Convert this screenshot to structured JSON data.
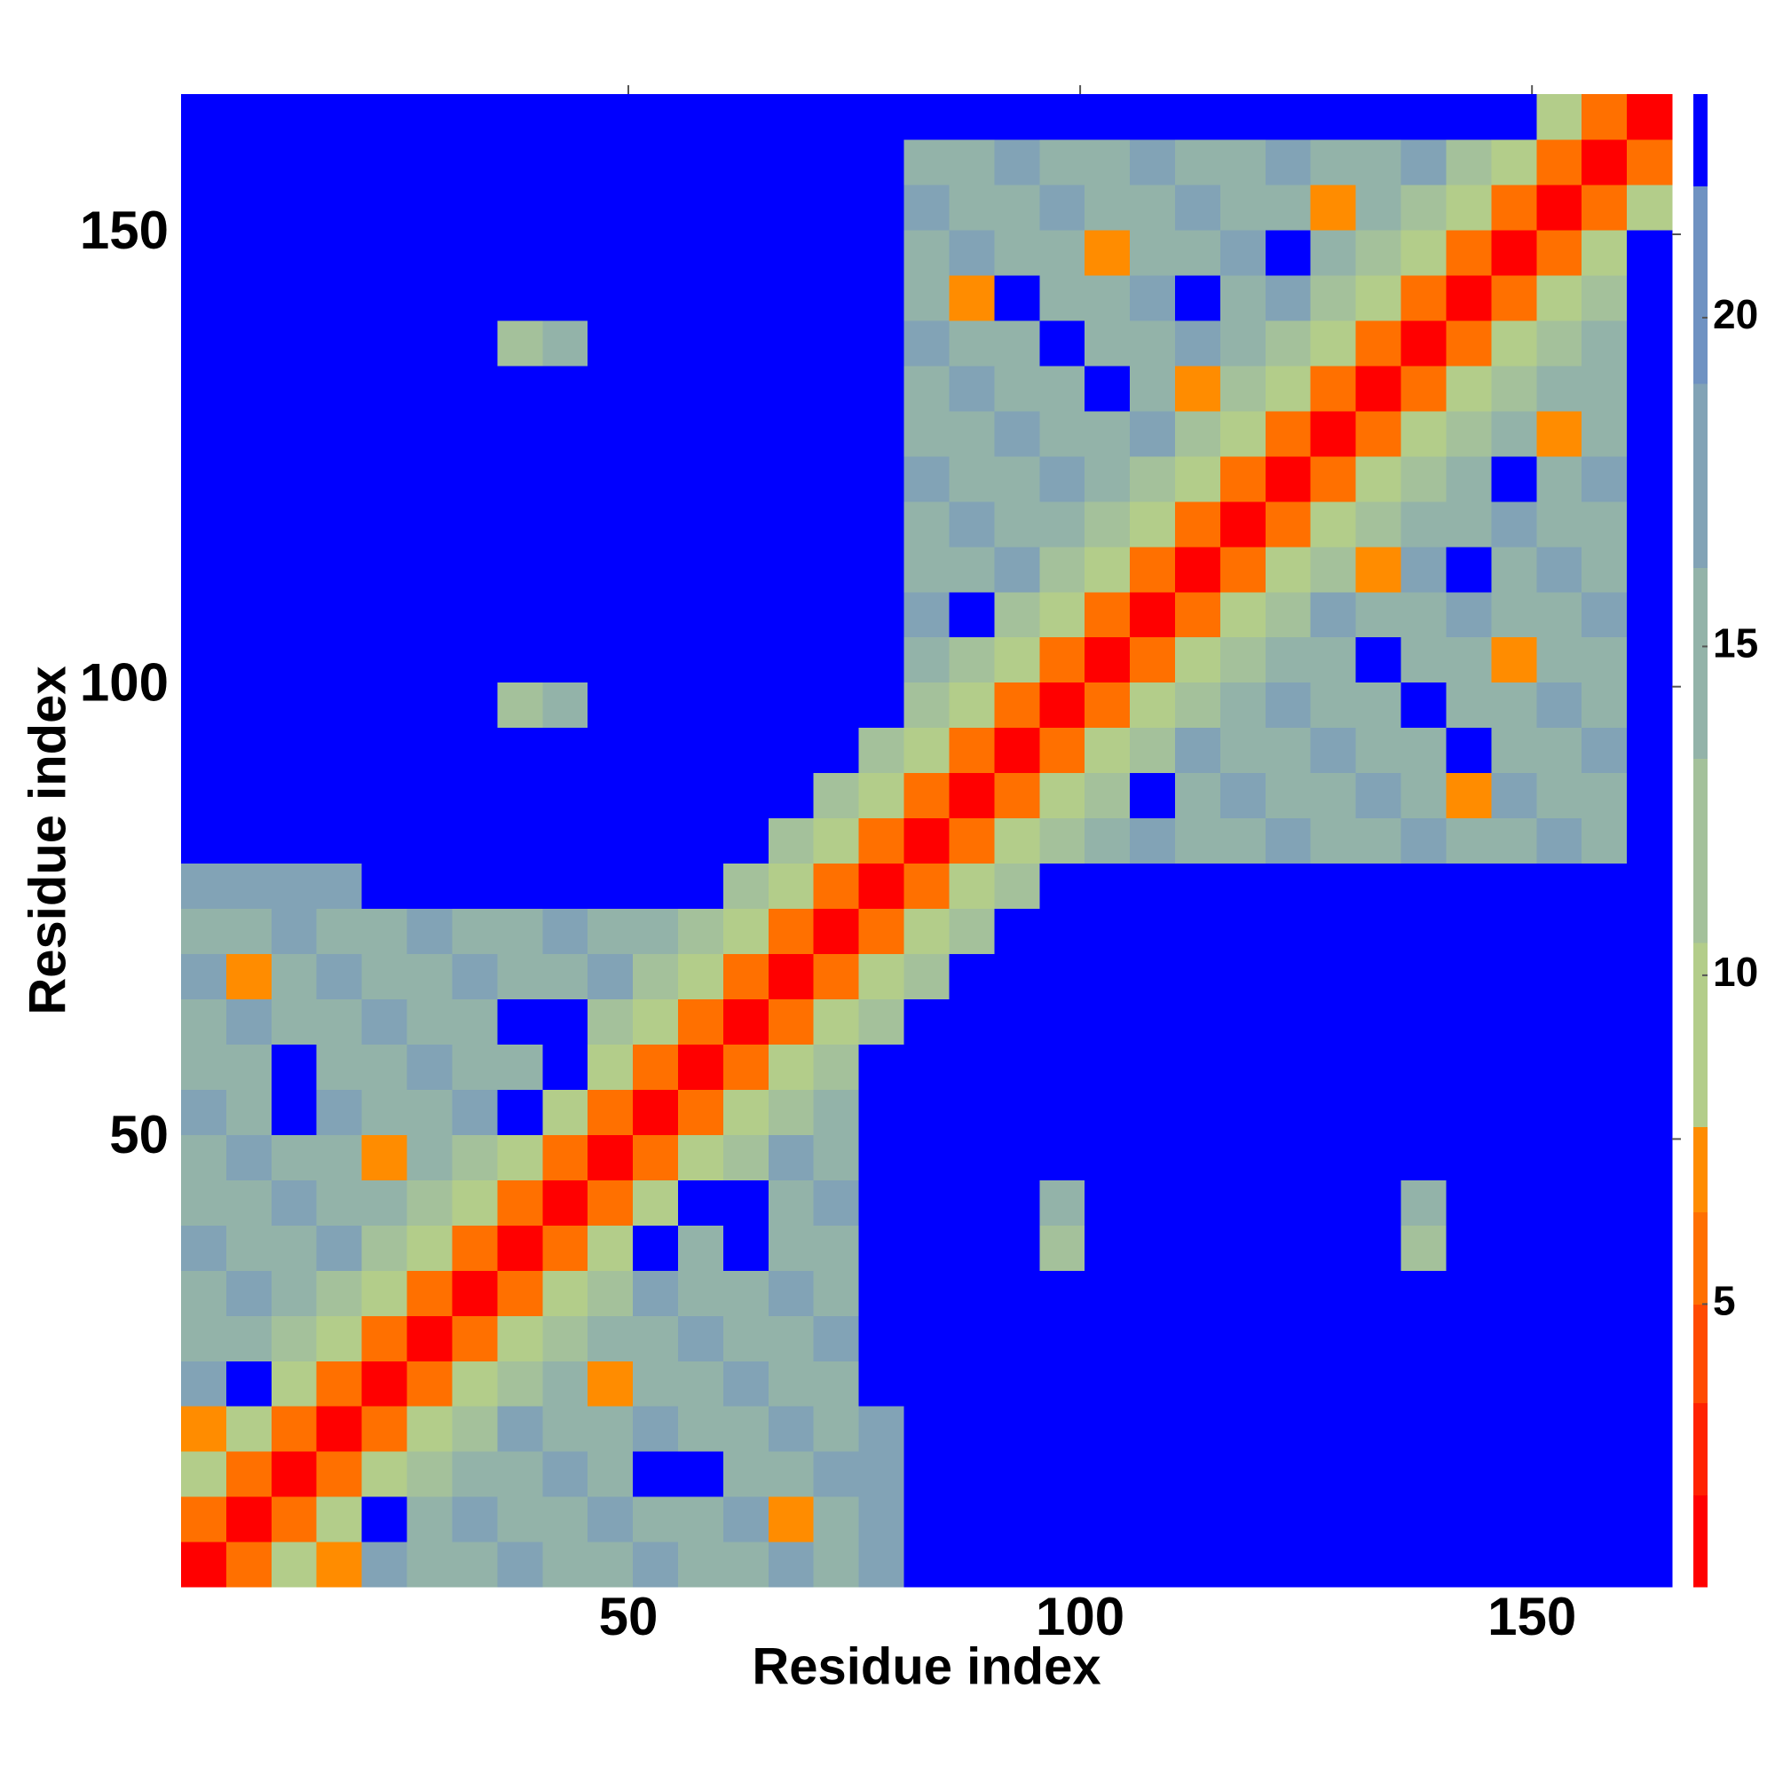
{
  "chart_data": {
    "type": "heatmap",
    "xlabel": "Residue index",
    "ylabel": "Residue index",
    "x": [
      3,
      8,
      13,
      18,
      23,
      28,
      33,
      38,
      43,
      48,
      53,
      58,
      63,
      68,
      73,
      78,
      83,
      88,
      93,
      98,
      103,
      108,
      113,
      118,
      123,
      128,
      133,
      138,
      143,
      148,
      153,
      158,
      163
    ],
    "y": [
      3,
      8,
      13,
      18,
      23,
      28,
      33,
      38,
      43,
      48,
      53,
      58,
      63,
      68,
      73,
      78,
      83,
      88,
      93,
      98,
      103,
      108,
      113,
      118,
      123,
      128,
      133,
      138,
      143,
      148,
      153,
      158,
      163
    ],
    "xlim": [
      0.5,
      165.5
    ],
    "ylim": [
      0.5,
      165.5
    ],
    "xticks": [
      50,
      100,
      150
    ],
    "yticks": [
      50,
      100,
      150
    ],
    "z": [
      [
        2,
        6,
        10,
        7,
        17,
        16,
        15,
        17,
        16,
        15,
        17,
        16,
        15,
        17,
        16,
        18,
        25,
        25,
        25,
        25,
        25,
        25,
        25,
        25,
        25,
        25,
        25,
        25,
        25,
        25,
        25,
        25,
        25
      ],
      [
        6,
        2,
        6,
        10,
        25,
        15,
        17,
        16,
        15,
        17,
        16,
        15,
        17,
        7,
        15,
        18,
        25,
        25,
        25,
        25,
        25,
        25,
        25,
        25,
        25,
        25,
        25,
        25,
        25,
        25,
        25,
        25,
        25
      ],
      [
        10,
        6,
        2,
        6,
        10,
        13,
        16,
        15,
        17,
        16,
        25,
        25,
        16,
        15,
        17,
        18,
        25,
        25,
        25,
        25,
        25,
        25,
        25,
        25,
        25,
        25,
        25,
        25,
        25,
        25,
        25,
        25,
        25
      ],
      [
        7,
        10,
        6,
        2,
        6,
        10,
        13,
        17,
        16,
        15,
        17,
        16,
        15,
        17,
        16,
        18,
        25,
        25,
        25,
        25,
        25,
        25,
        25,
        25,
        25,
        25,
        25,
        25,
        25,
        25,
        25,
        25,
        25
      ],
      [
        17,
        25,
        10,
        6,
        2,
        6,
        10,
        13,
        15,
        7,
        16,
        15,
        17,
        16,
        15,
        25,
        25,
        25,
        25,
        25,
        25,
        25,
        25,
        25,
        25,
        25,
        25,
        25,
        25,
        25,
        25,
        25,
        25
      ],
      [
        16,
        15,
        13,
        10,
        6,
        2,
        6,
        10,
        13,
        16,
        15,
        17,
        16,
        15,
        17,
        25,
        25,
        25,
        25,
        25,
        25,
        25,
        25,
        25,
        25,
        25,
        25,
        25,
        25,
        25,
        25,
        25,
        25
      ],
      [
        15,
        17,
        16,
        13,
        10,
        6,
        2,
        6,
        10,
        13,
        17,
        16,
        15,
        17,
        16,
        25,
        25,
        25,
        25,
        25,
        25,
        25,
        25,
        25,
        25,
        25,
        25,
        25,
        25,
        25,
        25,
        25,
        25
      ],
      [
        17,
        16,
        15,
        17,
        13,
        10,
        6,
        2,
        6,
        10,
        25,
        15,
        25,
        16,
        15,
        25,
        25,
        25,
        25,
        12,
        25,
        25,
        25,
        25,
        25,
        25,
        25,
        12,
        25,
        25,
        25,
        25,
        25
      ],
      [
        16,
        15,
        17,
        16,
        15,
        13,
        10,
        6,
        2,
        6,
        10,
        25,
        25,
        15,
        17,
        25,
        25,
        25,
        25,
        15,
        25,
        25,
        25,
        25,
        25,
        25,
        25,
        15,
        25,
        25,
        25,
        25,
        25
      ],
      [
        15,
        17,
        16,
        15,
        7,
        16,
        13,
        10,
        6,
        2,
        6,
        10,
        13,
        17,
        16,
        25,
        25,
        25,
        25,
        25,
        25,
        25,
        25,
        25,
        25,
        25,
        25,
        25,
        25,
        25,
        25,
        25,
        25
      ],
      [
        17,
        16,
        25,
        17,
        16,
        15,
        17,
        25,
        10,
        6,
        2,
        6,
        10,
        13,
        15,
        25,
        25,
        25,
        25,
        25,
        25,
        25,
        25,
        25,
        25,
        25,
        25,
        25,
        25,
        25,
        25,
        25,
        25
      ],
      [
        16,
        15,
        25,
        16,
        15,
        17,
        16,
        15,
        25,
        10,
        6,
        2,
        6,
        10,
        13,
        25,
        25,
        25,
        25,
        25,
        25,
        25,
        25,
        25,
        25,
        25,
        25,
        25,
        25,
        25,
        25,
        25,
        25
      ],
      [
        15,
        17,
        16,
        15,
        17,
        16,
        15,
        25,
        25,
        13,
        10,
        6,
        2,
        6,
        10,
        13,
        25,
        25,
        25,
        25,
        25,
        25,
        25,
        25,
        25,
        25,
        25,
        25,
        25,
        25,
        25,
        25,
        25
      ],
      [
        17,
        7,
        15,
        17,
        16,
        15,
        17,
        16,
        15,
        17,
        13,
        10,
        6,
        2,
        6,
        10,
        13,
        25,
        25,
        25,
        25,
        25,
        25,
        25,
        25,
        25,
        25,
        25,
        25,
        25,
        25,
        25,
        25
      ],
      [
        16,
        15,
        17,
        16,
        15,
        17,
        16,
        15,
        17,
        16,
        15,
        13,
        10,
        6,
        2,
        6,
        10,
        13,
        25,
        25,
        25,
        25,
        25,
        25,
        25,
        25,
        25,
        25,
        25,
        25,
        25,
        25,
        25
      ],
      [
        18,
        18,
        18,
        18,
        25,
        25,
        25,
        25,
        25,
        25,
        25,
        25,
        13,
        10,
        6,
        2,
        6,
        10,
        13,
        25,
        25,
        25,
        25,
        25,
        25,
        25,
        25,
        25,
        25,
        25,
        25,
        25,
        25
      ],
      [
        25,
        25,
        25,
        25,
        25,
        25,
        25,
        25,
        25,
        25,
        25,
        25,
        25,
        13,
        10,
        6,
        2,
        6,
        10,
        13,
        15,
        17,
        16,
        15,
        17,
        16,
        15,
        17,
        16,
        15,
        17,
        16,
        25
      ],
      [
        25,
        25,
        25,
        25,
        25,
        25,
        25,
        25,
        25,
        25,
        25,
        25,
        25,
        25,
        13,
        10,
        6,
        2,
        6,
        10,
        13,
        25,
        15,
        17,
        16,
        15,
        17,
        16,
        7,
        17,
        16,
        15,
        25
      ],
      [
        25,
        25,
        25,
        25,
        25,
        25,
        25,
        25,
        25,
        25,
        25,
        25,
        25,
        25,
        25,
        13,
        10,
        6,
        2,
        6,
        10,
        13,
        17,
        16,
        15,
        17,
        16,
        15,
        25,
        16,
        15,
        17,
        25
      ],
      [
        25,
        25,
        25,
        25,
        25,
        25,
        25,
        12,
        15,
        25,
        25,
        25,
        25,
        25,
        25,
        25,
        13,
        10,
        6,
        2,
        6,
        10,
        13,
        15,
        17,
        16,
        15,
        25,
        16,
        15,
        17,
        16,
        25
      ],
      [
        25,
        25,
        25,
        25,
        25,
        25,
        25,
        25,
        25,
        25,
        25,
        25,
        25,
        25,
        25,
        25,
        15,
        13,
        10,
        6,
        2,
        6,
        10,
        13,
        16,
        15,
        25,
        16,
        15,
        7,
        16,
        15,
        25
      ],
      [
        25,
        25,
        25,
        25,
        25,
        25,
        25,
        25,
        25,
        25,
        25,
        25,
        25,
        25,
        25,
        25,
        17,
        25,
        13,
        10,
        6,
        2,
        6,
        10,
        13,
        17,
        16,
        15,
        17,
        16,
        15,
        17,
        25
      ],
      [
        25,
        25,
        25,
        25,
        25,
        25,
        25,
        25,
        25,
        25,
        25,
        25,
        25,
        25,
        25,
        25,
        16,
        15,
        17,
        13,
        10,
        6,
        2,
        6,
        10,
        13,
        7,
        17,
        25,
        15,
        17,
        16,
        25
      ],
      [
        25,
        25,
        25,
        25,
        25,
        25,
        25,
        25,
        25,
        25,
        25,
        25,
        25,
        25,
        25,
        25,
        15,
        17,
        16,
        15,
        13,
        10,
        6,
        2,
        6,
        10,
        13,
        16,
        15,
        17,
        16,
        15,
        25
      ],
      [
        25,
        25,
        25,
        25,
        25,
        25,
        25,
        25,
        25,
        25,
        25,
        25,
        25,
        25,
        25,
        25,
        17,
        16,
        15,
        17,
        16,
        13,
        10,
        6,
        2,
        6,
        10,
        13,
        16,
        25,
        15,
        17,
        25
      ],
      [
        25,
        25,
        25,
        25,
        25,
        25,
        25,
        25,
        25,
        25,
        25,
        25,
        25,
        25,
        25,
        25,
        16,
        15,
        17,
        16,
        15,
        17,
        13,
        10,
        6,
        2,
        6,
        10,
        13,
        15,
        7,
        16,
        25
      ],
      [
        25,
        25,
        25,
        25,
        25,
        25,
        25,
        25,
        25,
        25,
        25,
        25,
        25,
        25,
        25,
        25,
        15,
        17,
        16,
        15,
        25,
        16,
        7,
        13,
        10,
        6,
        2,
        6,
        10,
        13,
        16,
        15,
        25
      ],
      [
        25,
        25,
        25,
        25,
        25,
        25,
        25,
        12,
        15,
        25,
        25,
        25,
        25,
        25,
        25,
        25,
        17,
        16,
        15,
        25,
        16,
        15,
        17,
        16,
        13,
        10,
        6,
        2,
        6,
        10,
        13,
        16,
        25
      ],
      [
        25,
        25,
        25,
        25,
        25,
        25,
        25,
        25,
        25,
        25,
        25,
        25,
        25,
        25,
        25,
        25,
        16,
        7,
        25,
        16,
        15,
        17,
        25,
        15,
        17,
        13,
        10,
        6,
        2,
        6,
        10,
        13,
        25
      ],
      [
        25,
        25,
        25,
        25,
        25,
        25,
        25,
        25,
        25,
        25,
        25,
        25,
        25,
        25,
        25,
        25,
        15,
        17,
        16,
        15,
        7,
        16,
        15,
        17,
        25,
        15,
        13,
        10,
        6,
        2,
        6,
        10,
        25
      ],
      [
        25,
        25,
        25,
        25,
        25,
        25,
        25,
        25,
        25,
        25,
        25,
        25,
        25,
        25,
        25,
        25,
        17,
        16,
        15,
        17,
        16,
        15,
        17,
        16,
        15,
        7,
        16,
        13,
        10,
        6,
        2,
        6,
        10
      ],
      [
        25,
        25,
        25,
        25,
        25,
        25,
        25,
        25,
        25,
        25,
        25,
        25,
        25,
        25,
        25,
        25,
        16,
        15,
        17,
        16,
        15,
        17,
        16,
        15,
        17,
        16,
        15,
        17,
        13,
        10,
        6,
        2,
        6
      ],
      [
        25,
        25,
        25,
        25,
        25,
        25,
        25,
        25,
        25,
        25,
        25,
        25,
        25,
        25,
        25,
        25,
        25,
        25,
        25,
        25,
        25,
        25,
        25,
        25,
        25,
        25,
        25,
        25,
        25,
        25,
        10,
        6,
        2
      ]
    ],
    "colorbar": {
      "levels": [
        0.7,
        2.1,
        3.5,
        5,
        6.4,
        7.7,
        10.5,
        13.3,
        16.2,
        19,
        22,
        23.4
      ],
      "colors": [
        "#ff0000",
        "#ff2200",
        "#ff4a00",
        "#ff7000",
        "#ff8c00",
        "#b3cd8a",
        "#a4c19b",
        "#93b3a9",
        "#82a3b6",
        "#6f92c2",
        "#0000ff"
      ],
      "ticks": [
        5,
        10,
        15,
        20
      ]
    }
  }
}
